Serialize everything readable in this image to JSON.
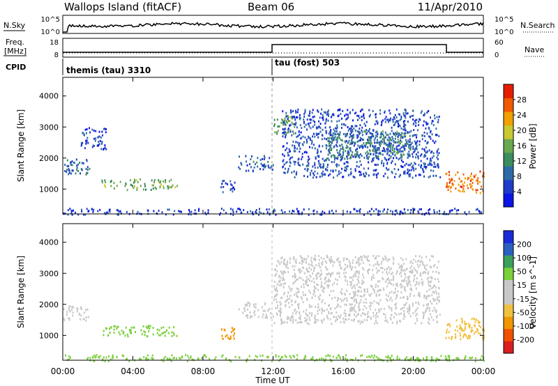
{
  "header": {
    "site": "Wallops Island (fitACF)",
    "beam": "Beam 06",
    "date": "11/Apr/2010"
  },
  "nsky_panel": {
    "left_label": "N.Sky",
    "right_label": "N.Search",
    "left_ticks": [
      "10^5",
      "10^0"
    ],
    "right_ticks": [
      "10^5",
      "10^0"
    ]
  },
  "freq_panel": {
    "left_label_1": "Freq.",
    "left_label_2": "[MHz]",
    "right_label": "Nave",
    "left_ticks": [
      "18",
      "8"
    ],
    "right_ticks": [
      "60",
      "0"
    ]
  },
  "cpid_panel": {
    "label": "CPID",
    "programs": [
      {
        "name": "themis (tau) 3310",
        "start_hour": 0
      },
      {
        "name": "tau (fost) 503",
        "start_hour": 12
      }
    ]
  },
  "x_axis": {
    "label": "Time UT",
    "range_hours": [
      0,
      24
    ],
    "ticks": [
      "00:00",
      "04:00",
      "08:00",
      "12:00",
      "16:00",
      "20:00",
      "00:00"
    ]
  },
  "colors": {
    "power_scale": [
      "#0a14e6",
      "#1e3cc8",
      "#2f6aa8",
      "#3b8c5e",
      "#6aa84f",
      "#c8c832",
      "#f0a000",
      "#f05a00",
      "#e61e00"
    ],
    "velocity_scale": [
      "#d81e1e",
      "#f05000",
      "#f09600",
      "#f0c040",
      "#c8c8c8",
      "#c8c8c8",
      "#7ad03a",
      "#3aa05a",
      "#2a60c0",
      "#1a2ad8"
    ]
  },
  "chart_data": [
    {
      "type": "heatmap",
      "panel": "power",
      "ylabel": "Slant Range [km]",
      "ylim": [
        200,
        4600
      ],
      "y_ticks": [
        1000,
        2000,
        3000,
        4000
      ],
      "xlim_hours": [
        0,
        24
      ],
      "colorbar": {
        "label": "Power [dB]",
        "ticks": [
          "4",
          "8",
          "12",
          "16",
          "20",
          "24",
          "28"
        ],
        "range": [
          0,
          30
        ]
      },
      "features": [
        {
          "t_start": 0.0,
          "t_end": 1.5,
          "r_start": 1500,
          "r_end": 2000,
          "value": 8
        },
        {
          "t_start": 1.0,
          "t_end": 2.5,
          "r_start": 2300,
          "r_end": 3000,
          "value": 5
        },
        {
          "t_start": 2.2,
          "t_end": 6.5,
          "r_start": 1000,
          "r_end": 1350,
          "value": 14
        },
        {
          "t_start": 9.0,
          "t_end": 9.8,
          "r_start": 900,
          "r_end": 1300,
          "value": 6
        },
        {
          "t_start": 10.0,
          "t_end": 12.0,
          "r_start": 1600,
          "r_end": 2100,
          "value": 7
        },
        {
          "t_start": 12.0,
          "t_end": 13.2,
          "r_start": 2800,
          "r_end": 3400,
          "value": 13
        },
        {
          "t_start": 12.5,
          "t_end": 21.5,
          "r_start": 1400,
          "r_end": 3600,
          "value": 6
        },
        {
          "t_start": 15.0,
          "t_end": 20.0,
          "r_start": 2000,
          "r_end": 2900,
          "value": 11
        },
        {
          "t_start": 21.8,
          "t_end": 24.0,
          "r_start": 900,
          "r_end": 1600,
          "value": 24
        },
        {
          "t_start": 0.0,
          "t_end": 24.0,
          "r_start": 200,
          "r_end": 400,
          "value": 5
        }
      ]
    },
    {
      "type": "heatmap",
      "panel": "velocity",
      "ylabel": "Slant Range [km]",
      "ylim": [
        200,
        4600
      ],
      "y_ticks": [
        1000,
        2000,
        3000,
        4000
      ],
      "xlim_hours": [
        0,
        24
      ],
      "colorbar": {
        "label": "Velocity [m s^-1]",
        "ticks": [
          "-200",
          "-100",
          "-50",
          "-15",
          "15",
          "50",
          "100",
          "200"
        ],
        "range": [
          -250,
          250
        ]
      },
      "features": [
        {
          "t_start": 0.0,
          "t_end": 1.5,
          "r_start": 1500,
          "r_end": 2000,
          "value": 0
        },
        {
          "t_start": 2.2,
          "t_end": 6.5,
          "r_start": 1000,
          "r_end": 1350,
          "value": 40
        },
        {
          "t_start": 9.0,
          "t_end": 9.8,
          "r_start": 900,
          "r_end": 1300,
          "value": -60
        },
        {
          "t_start": 10.0,
          "t_end": 12.0,
          "r_start": 1600,
          "r_end": 2100,
          "value": 0
        },
        {
          "t_start": 12.0,
          "t_end": 21.5,
          "r_start": 1400,
          "r_end": 3600,
          "value": 0
        },
        {
          "t_start": 21.8,
          "t_end": 24.0,
          "r_start": 900,
          "r_end": 1600,
          "value": -20
        },
        {
          "t_start": 0.0,
          "t_end": 24.0,
          "r_start": 200,
          "r_end": 400,
          "value": 30
        }
      ]
    }
  ]
}
